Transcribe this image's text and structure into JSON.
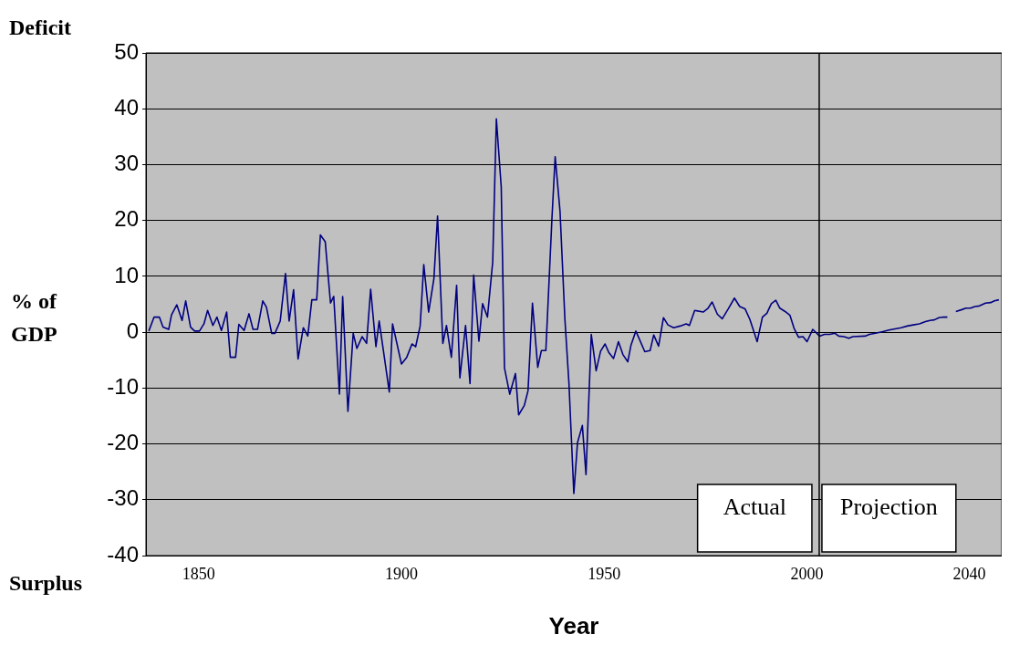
{
  "chart_data": {
    "type": "line",
    "xlabel": "Year",
    "ylabel": "% of GDP",
    "annotations": [
      "Deficit",
      "Surplus",
      "Actual",
      "Projection"
    ],
    "xlim": [
      1837,
      2048
    ],
    "xticks": [
      1850,
      1900,
      1950,
      2000,
      2040
    ],
    "ylim": [
      -40,
      50
    ],
    "yticks": [
      -40,
      -30,
      -20,
      -10,
      0,
      10,
      20,
      30,
      40,
      50
    ],
    "grid": "y",
    "legend": false,
    "ref_lines": [
      {
        "axis": "x",
        "value": 2003,
        "color": "#000000"
      }
    ],
    "series": [
      {
        "color": "#000080",
        "x": [
          1837.7,
          1839.0,
          1840.3,
          1841.2,
          1842.6,
          1843.3,
          1844.6,
          1845.9,
          1846.8,
          1848.0,
          1849.0,
          1850.2,
          1851.3,
          1852.2,
          1853.5,
          1854.5,
          1855.6,
          1856.9,
          1857.8,
          1859.1,
          1859.9,
          1861.2,
          1862.4,
          1863.4,
          1864.5,
          1865.8,
          1866.7,
          1868.0,
          1868.8,
          1870.1,
          1871.4,
          1872.3,
          1873.4,
          1874.5,
          1875.8,
          1876.9,
          1877.9,
          1879.1,
          1880.0,
          1881.2,
          1882.5,
          1883.3,
          1884.7,
          1885.5,
          1886.8,
          1888.1,
          1889.0,
          1890.3,
          1891.4,
          1892.4,
          1893.7,
          1894.5,
          1897.0,
          1897.8,
          1900.0,
          1901.3,
          1902.6,
          1903.5,
          1904.6,
          1905.5,
          1906.7,
          1908.0,
          1908.9,
          1910.2,
          1911.1,
          1912.3,
          1913.6,
          1914.4,
          1915.8,
          1916.9,
          1917.8,
          1919.1,
          1920.0,
          1921.2,
          1922.5,
          1923.4,
          1924.6,
          1925.4,
          1926.7,
          1928.1,
          1928.9,
          1930.3,
          1931.2,
          1932.3,
          1933.6,
          1934.5,
          1935.6,
          1937.1,
          1937.9,
          1939.1,
          1940.3,
          1941.3,
          1942.5,
          1943.4,
          1944.6,
          1945.5,
          1946.8,
          1948.0,
          1949.1,
          1950.2,
          1951.1,
          1952.3,
          1953.5,
          1954.6,
          1955.8,
          1956.6,
          1957.8,
          1960.0,
          1961.3,
          1962.2,
          1963.4,
          1964.6,
          1965.7,
          1967.1,
          1968.7,
          1970.2,
          1971.0,
          1972.3,
          1974.4,
          1975.6,
          1976.6,
          1977.9,
          1979.1,
          1980.6,
          1982.1,
          1983.4,
          1984.7,
          1985.9,
          1987.7,
          1989.0,
          1990.1,
          1991.2,
          1992.3,
          1993.3,
          1994.6,
          1995.8,
          1996.8,
          1997.9,
          1999.0,
          2000.0,
          2001.4,
          2003.1,
          2004.3,
          2005.6,
          2006.9,
          2007.8,
          2009.1,
          2010.3,
          2011.3,
          2014.3,
          2015.4,
          2016.9,
          2018.7,
          2020.2,
          2021.7,
          2023.2,
          2024.7,
          2026.2,
          2027.7,
          2029.2,
          2030.3,
          2031.4,
          2032.5,
          2033.6,
          2034.6,
          2035.5,
          2036.7,
          2038.0,
          2039.2,
          2040.3,
          2041.4,
          2042.5,
          2044.0,
          2045.3,
          2046.2,
          2047.3
        ],
        "values": [
          0.2,
          2.7,
          2.7,
          0.9,
          0.5,
          3.1,
          4.9,
          2.1,
          5.6,
          0.9,
          0.2,
          0.2,
          1.5,
          3.9,
          1.2,
          2.7,
          0.3,
          3.6,
          -4.5,
          -4.5,
          1.4,
          0.3,
          3.3,
          0.5,
          0.5,
          5.6,
          4.5,
          -0.2,
          -0.2,
          2.0,
          10.5,
          2.0,
          7.6,
          -4.8,
          0.8,
          -0.7,
          5.8,
          5.8,
          17.4,
          16.2,
          5.2,
          6.4,
          -11.1,
          6.4,
          -14.2,
          -0.2,
          -2.9,
          -0.8,
          -2.0,
          7.7,
          -2.6,
          2.0,
          -10.7,
          1.5,
          -5.7,
          -4.5,
          -2.1,
          -2.6,
          1.1,
          12.1,
          3.6,
          9.6,
          20.8,
          -2.0,
          1.2,
          -4.5,
          8.4,
          -8.2,
          1.2,
          -9.2,
          10.2,
          -1.6,
          5.1,
          2.7,
          12.6,
          38.2,
          26.0,
          -6.4,
          -11.1,
          -7.4,
          -14.8,
          -13.1,
          -10.5,
          5.2,
          -6.3,
          -3.3,
          -3.3,
          20.3,
          31.4,
          21.6,
          2.3,
          -9.2,
          -28.9,
          -19.8,
          -16.7,
          -25.5,
          -0.4,
          -6.9,
          -3.4,
          -2.1,
          -3.6,
          -4.7,
          -1.7,
          -4.0,
          -5.3,
          -2.3,
          0.2,
          -3.5,
          -3.3,
          -0.5,
          -2.5,
          2.6,
          1.3,
          0.8,
          1.1,
          1.5,
          1.2,
          3.9,
          3.6,
          4.3,
          5.4,
          3.2,
          2.4,
          4.2,
          6.1,
          4.6,
          4.2,
          2.3,
          -1.7,
          2.7,
          3.4,
          5.1,
          5.7,
          4.3,
          3.7,
          3.0,
          0.7,
          -0.9,
          -0.8,
          -1.7,
          0.5,
          -0.7,
          -0.4,
          -0.4,
          -0.2,
          -0.7,
          -0.8,
          -1.1,
          -0.8,
          -0.7,
          -0.4,
          -0.2,
          0.1,
          0.4,
          0.6,
          0.8,
          1.1,
          1.3,
          1.5,
          1.9,
          2.1,
          2.2,
          2.6,
          2.7,
          2.7,
          null,
          3.7,
          4.0,
          4.3,
          4.3,
          4.6,
          4.7,
          5.2,
          5.3,
          5.6,
          5.8
        ]
      }
    ]
  }
}
